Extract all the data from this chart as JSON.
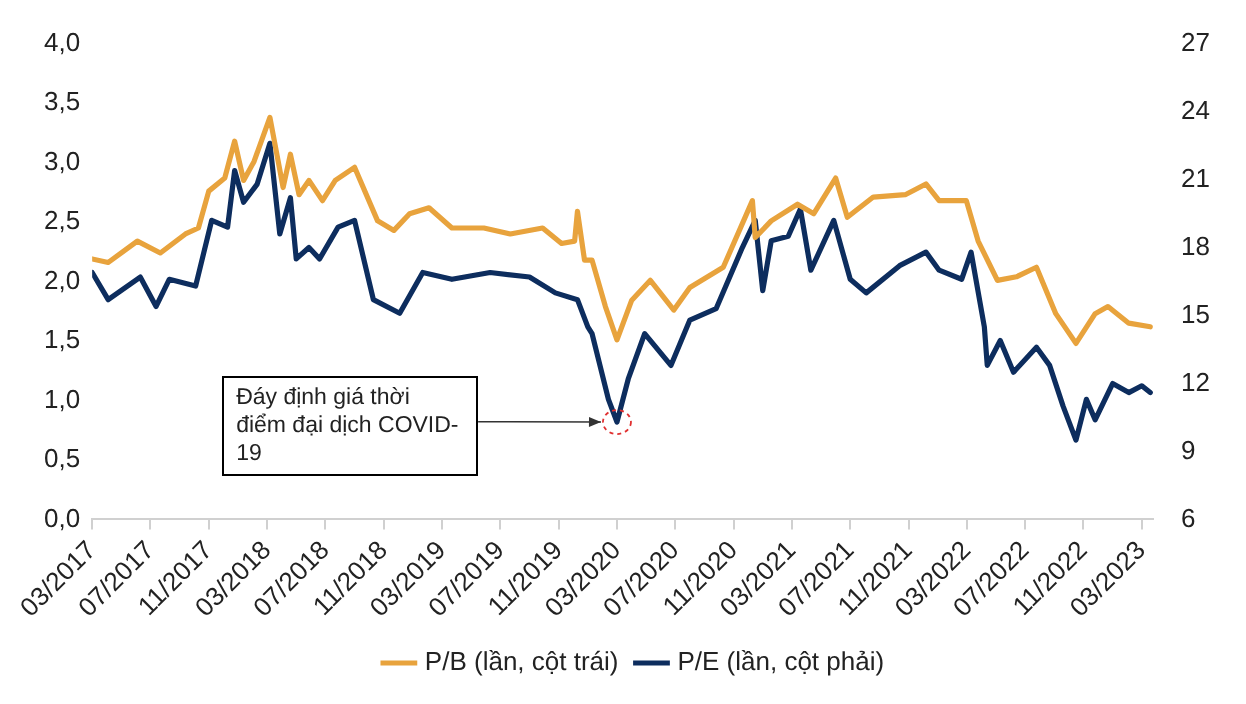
{
  "chart_data": {
    "type": "line",
    "xlim": [
      "2017-03-01",
      "2023-03-25"
    ],
    "xticks": [
      {
        "value": "2017-03",
        "label": "03/2017"
      },
      {
        "value": "2017-07",
        "label": "07/2017"
      },
      {
        "value": "2017-11",
        "label": "11/2017"
      },
      {
        "value": "2018-03",
        "label": "03/2018"
      },
      {
        "value": "2018-07",
        "label": "07/2018"
      },
      {
        "value": "2018-11",
        "label": "11/2018"
      },
      {
        "value": "2019-03",
        "label": "03/2019"
      },
      {
        "value": "2019-07",
        "label": "07/2019"
      },
      {
        "value": "2019-11",
        "label": "11/2019"
      },
      {
        "value": "2020-03",
        "label": "03/2020"
      },
      {
        "value": "2020-07",
        "label": "07/2020"
      },
      {
        "value": "2020-11",
        "label": "11/2020"
      },
      {
        "value": "2021-03",
        "label": "03/2021"
      },
      {
        "value": "2021-07",
        "label": "07/2021"
      },
      {
        "value": "2021-11",
        "label": "11/2021"
      },
      {
        "value": "2022-03",
        "label": "03/2022"
      },
      {
        "value": "2022-07",
        "label": "07/2022"
      },
      {
        "value": "2022-11",
        "label": "11/2022"
      },
      {
        "value": "2023-03",
        "label": "03/2023"
      }
    ],
    "ylim": [
      0,
      4
    ],
    "yticks": [
      {
        "value": 0,
        "label": "0,0"
      },
      {
        "value": 0.5,
        "label": "0,5"
      },
      {
        "value": 1,
        "label": "1,0"
      },
      {
        "value": 1.5,
        "label": "1,5"
      },
      {
        "value": 2,
        "label": "2,0"
      },
      {
        "value": 2.5,
        "label": "2,5"
      },
      {
        "value": 3,
        "label": "3,0"
      },
      {
        "value": 3.5,
        "label": "3,5"
      },
      {
        "value": 4,
        "label": "4,0"
      }
    ],
    "y2lim": [
      6,
      27
    ],
    "y2ticks": [
      6,
      9,
      12,
      15,
      18,
      21,
      24,
      27
    ],
    "legend": "bottom",
    "grid": false,
    "marker": "none",
    "line_style": "solid",
    "annotations": [
      {
        "text": "Đáy định giá thời điểm đại dịch COVID-19",
        "x": "2020-03-01"
      }
    ],
    "series": [
      {
        "name": "P/B (lần, cột trái)",
        "color": "#e8a33d",
        "x": [
          "2017-03-01",
          "2017-04-04",
          "2017-06-04",
          "2017-07-22",
          "2017-09-13",
          "2017-10-10",
          "2017-11-01",
          "2017-12-04",
          "2017-12-25",
          "2018-01-13",
          "2018-02-04",
          "2018-03-07",
          "2018-04-04",
          "2018-04-19",
          "2018-05-07",
          "2018-05-28",
          "2018-06-25",
          "2018-07-22",
          "2018-09-01",
          "2018-10-19",
          "2018-11-22",
          "2018-12-25",
          "2019-02-04",
          "2019-03-22",
          "2019-05-28",
          "2019-07-22",
          "2019-09-28",
          "2019-11-07",
          "2019-12-04",
          "2019-12-10",
          "2019-12-25",
          "2020-01-10",
          "2020-02-07",
          "2020-03-01",
          "2020-04-01",
          "2020-05-10",
          "2020-06-28",
          "2020-08-01",
          "2020-10-10",
          "2020-12-10",
          "2020-12-16",
          "2021-01-19",
          "2021-03-13",
          "2021-04-16",
          "2021-06-01",
          "2021-06-25",
          "2021-08-19",
          "2021-10-25",
          "2021-12-07",
          "2022-01-04",
          "2022-02-28",
          "2022-03-25",
          "2022-05-04",
          "2022-06-13",
          "2022-07-25",
          "2022-09-04",
          "2022-10-16",
          "2022-11-25",
          "2022-12-22",
          "2023-02-04",
          "2023-03-19"
        ],
        "values": [
          2.19,
          2.16,
          2.34,
          2.24,
          2.4,
          2.45,
          2.76,
          2.87,
          3.18,
          2.85,
          3.01,
          3.38,
          2.79,
          3.07,
          2.73,
          2.85,
          2.68,
          2.85,
          2.96,
          2.51,
          2.43,
          2.57,
          2.62,
          2.45,
          2.45,
          2.4,
          2.45,
          2.32,
          2.34,
          2.59,
          2.18,
          2.18,
          1.79,
          1.51,
          1.84,
          2.01,
          1.76,
          1.95,
          2.12,
          2.68,
          2.37,
          2.51,
          2.65,
          2.57,
          2.87,
          2.54,
          2.71,
          2.73,
          2.82,
          2.68,
          2.68,
          2.34,
          2.01,
          2.04,
          2.12,
          1.73,
          1.48,
          1.73,
          1.79,
          1.65,
          1.62
        ]
      },
      {
        "name": "P/E (lần, cột phải)",
        "color": "#0d2d5e",
        "axis": "y2",
        "x": [
          "2017-03-01",
          "2017-04-04",
          "2017-06-10",
          "2017-07-13",
          "2017-08-10",
          "2017-10-04",
          "2017-11-07",
          "2017-12-10",
          "2017-12-25",
          "2018-01-13",
          "2018-02-10",
          "2018-03-07",
          "2018-03-28",
          "2018-04-19",
          "2018-05-01",
          "2018-05-28",
          "2018-06-19",
          "2018-07-28",
          "2018-09-01",
          "2018-10-10",
          "2018-12-04",
          "2019-01-22",
          "2019-03-22",
          "2019-06-10",
          "2019-09-01",
          "2019-10-25",
          "2019-12-10",
          "2020-01-01",
          "2020-01-10",
          "2020-02-13",
          "2020-03-01",
          "2020-03-25",
          "2020-04-28",
          "2020-06-22",
          "2020-08-01",
          "2020-09-25",
          "2020-11-19",
          "2020-12-16",
          "2021-01-01",
          "2021-01-19",
          "2021-02-22",
          "2021-03-19",
          "2021-04-10",
          "2021-05-28",
          "2021-07-01",
          "2021-08-04",
          "2021-10-13",
          "2021-12-07",
          "2022-01-04",
          "2022-02-19",
          "2022-03-10",
          "2022-04-07",
          "2022-04-13",
          "2022-05-10",
          "2022-06-07",
          "2022-07-25",
          "2022-08-22",
          "2022-09-19",
          "2022-10-16",
          "2022-11-07",
          "2022-11-25",
          "2023-01-01",
          "2023-02-04",
          "2023-03-01",
          "2023-03-19"
        ],
        "values": [
          16.9,
          15.7,
          16.7,
          15.4,
          16.6,
          16.3,
          19.2,
          18.9,
          21.4,
          20.0,
          20.8,
          22.6,
          18.6,
          20.2,
          17.5,
          18.0,
          17.5,
          18.9,
          19.2,
          15.7,
          15.1,
          16.9,
          16.6,
          16.9,
          16.7,
          16.0,
          15.7,
          14.5,
          14.2,
          11.3,
          10.3,
          12.2,
          14.2,
          12.8,
          14.8,
          15.3,
          18.0,
          19.2,
          16.1,
          18.3,
          18.5,
          19.7,
          17.0,
          19.2,
          16.6,
          16.0,
          17.2,
          17.8,
          17.0,
          16.6,
          17.8,
          14.5,
          12.8,
          13.9,
          12.5,
          13.6,
          12.8,
          11.0,
          9.5,
          11.3,
          10.4,
          12.0,
          11.6,
          11.9,
          11.6
        ]
      }
    ]
  }
}
